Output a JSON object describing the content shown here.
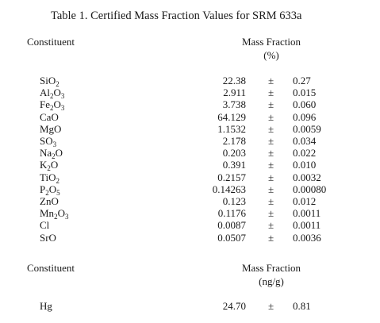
{
  "title": "Table 1. Certified Mass Fraction Values for SRM 633a",
  "section1": {
    "constituent_header": "Constituent",
    "value_header_line1": "Mass Fraction",
    "value_header_line2": "(%)",
    "rows": [
      {
        "name": "SiO",
        "sub": "2",
        "value": "22.38",
        "pm": "±",
        "unc": "0.27"
      },
      {
        "name": "Al",
        "sub": "2",
        "name2": "O",
        "sub2": "3",
        "value": "2.911",
        "pm": "±",
        "unc": "0.015"
      },
      {
        "name": "Fe",
        "sub": "2",
        "name2": "O",
        "sub2": "3",
        "value": "3.738",
        "pm": "±",
        "unc": "0.060"
      },
      {
        "name": "CaO",
        "value": "64.129",
        "pm": "±",
        "unc": "0.096"
      },
      {
        "name": "MgO",
        "value": "1.1532",
        "pm": "±",
        "unc": "0.0059"
      },
      {
        "name": "SO",
        "sub": "3",
        "value": "2.178",
        "pm": "±",
        "unc": "0.034"
      },
      {
        "name": "Na",
        "sub": "2",
        "name2": "O",
        "value": "0.203",
        "pm": "±",
        "unc": "0.022"
      },
      {
        "name": "K",
        "sub": "2",
        "name2": "O",
        "value": "0.391",
        "pm": "±",
        "unc": "0.010"
      },
      {
        "name": "TiO",
        "sub": "2",
        "value": "0.2157",
        "pm": "±",
        "unc": "0.0032"
      },
      {
        "name": "P",
        "sub": "2",
        "name2": "O",
        "sub2": "5",
        "value": "0.14263",
        "pm": "±",
        "unc": "0.00080"
      },
      {
        "name": "ZnO",
        "value": "0.123",
        "pm": "±",
        "unc": "0.012"
      },
      {
        "name": "Mn",
        "sub": "2",
        "name2": "O",
        "sub2": "3",
        "value": "0.1176",
        "pm": "±",
        "unc": "0.0011"
      },
      {
        "name": "Cl",
        "value": "0.0087",
        "pm": "±",
        "unc": "0.0011"
      },
      {
        "name": "SrO",
        "value": "0.0507",
        "pm": "±",
        "unc": "0.0036"
      }
    ]
  },
  "section2": {
    "constituent_header": "Constituent",
    "value_header_line1": "Mass Fraction",
    "value_header_line2": "(ng/g)",
    "rows": [
      {
        "name": "Hg",
        "value": "24.70",
        "pm": "±",
        "unc": "0.81"
      }
    ]
  }
}
